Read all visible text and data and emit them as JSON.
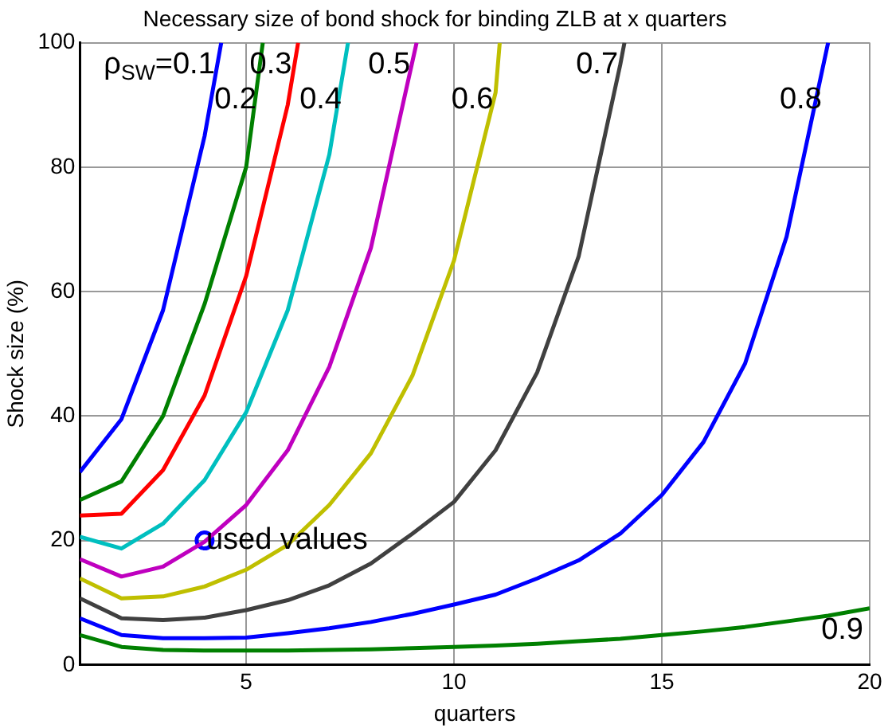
{
  "chart_data": {
    "type": "line",
    "title": "Necessary size of bond shock for binding ZLB at x quarters",
    "xlabel": "quarters",
    "ylabel": "Shock size (%)",
    "xlim": [
      1,
      20
    ],
    "xticks": [
      5,
      10,
      15,
      20
    ],
    "ylim": [
      0,
      100
    ],
    "yticks": [
      0,
      20,
      40,
      60,
      80,
      100
    ],
    "grid": true,
    "legend": false,
    "marker": "none",
    "line_style": "solid",
    "series": [
      {
        "name": "ρ$_{SW}$=0.1",
        "color": "#0000ff",
        "x": [
          1,
          2,
          3,
          4,
          4.4
        ],
        "values": [
          31,
          39.5,
          57,
          85,
          100
        ]
      },
      {
        "name": "0.2",
        "color": "#008000",
        "x": [
          1,
          2,
          3,
          4,
          5,
          5.4
        ],
        "values": [
          26.5,
          29.5,
          40,
          58,
          80,
          100
        ]
      },
      {
        "name": "0.3",
        "color": "#ff0000",
        "x": [
          1,
          2,
          3,
          4,
          5,
          6,
          6.25
        ],
        "values": [
          24,
          24.3,
          31.3,
          43.3,
          62.5,
          90,
          100
        ]
      },
      {
        "name": "0.4",
        "color": "#00bfbf",
        "x": [
          1,
          2,
          3,
          4,
          5,
          6,
          7,
          7.45
        ],
        "values": [
          20.6,
          18.7,
          22.7,
          29.7,
          40.6,
          57,
          82,
          100
        ]
      },
      {
        "name": "0.5",
        "color": "#bf00bf",
        "x": [
          1,
          2,
          3,
          4,
          5,
          6,
          7,
          8,
          9.1
        ],
        "values": [
          17,
          14.2,
          15.8,
          19.8,
          25.7,
          34.5,
          47.9,
          67,
          100
        ]
      },
      {
        "name": "0.6",
        "color": "#bfbf00",
        "x": [
          1,
          2,
          3,
          4,
          5,
          6,
          7,
          8,
          9,
          10,
          11,
          11.1
        ],
        "values": [
          13.9,
          10.7,
          11,
          12.6,
          15.3,
          19.3,
          25.7,
          34,
          46.5,
          65,
          92,
          100
        ]
      },
      {
        "name": "0.7",
        "color": "#404040",
        "x": [
          1,
          2,
          3,
          4,
          5,
          6,
          7,
          8,
          9,
          10,
          11,
          12,
          13,
          14,
          14.1
        ],
        "values": [
          10.7,
          7.5,
          7.2,
          7.6,
          8.8,
          10.4,
          12.8,
          16.3,
          21.1,
          26.2,
          34.5,
          47,
          65.7,
          96.5,
          100
        ]
      },
      {
        "name": "0.8",
        "color": "#0000ff",
        "x": [
          1,
          2,
          3,
          4,
          5,
          6,
          7,
          8,
          9,
          10,
          11,
          12,
          13,
          14,
          15,
          16,
          17,
          18,
          19
        ],
        "values": [
          7.5,
          4.8,
          4.3,
          4.3,
          4.4,
          5.1,
          5.9,
          6.9,
          8.2,
          9.7,
          11.3,
          13.9,
          16.8,
          21.1,
          27.3,
          35.8,
          48.4,
          68.8,
          100
        ]
      },
      {
        "name": "0.9",
        "color": "#008000",
        "x": [
          1,
          2,
          3,
          4,
          5,
          6,
          7,
          8,
          9,
          10,
          11,
          12,
          13,
          14,
          15,
          16,
          17,
          18,
          19,
          20
        ],
        "values": [
          4.8,
          2.9,
          2.4,
          2.3,
          2.3,
          2.3,
          2.4,
          2.5,
          2.7,
          2.9,
          3.1,
          3.4,
          3.8,
          4.2,
          4.8,
          5.4,
          6.1,
          7,
          7.9,
          9.1
        ]
      },
      {
        "type": "scatter",
        "marker": "circle",
        "color": "#0000ff",
        "x": [
          4
        ],
        "values": [
          20
        ]
      }
    ],
    "annotations": [
      {
        "text": "used values",
        "x": 4,
        "y": 20
      }
    ]
  }
}
